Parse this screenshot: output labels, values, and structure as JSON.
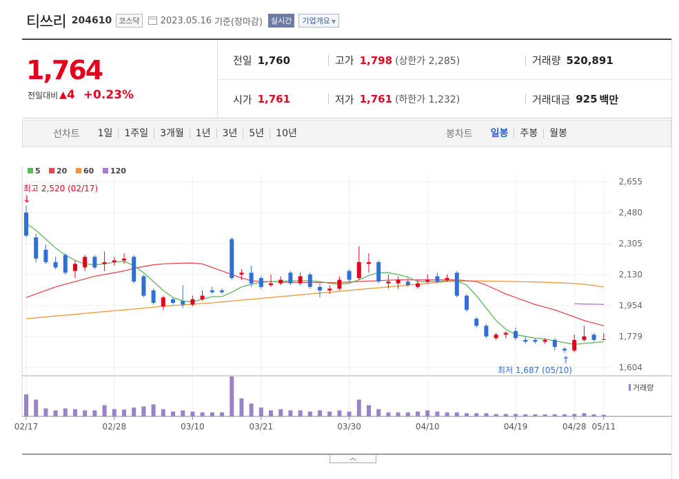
{
  "header": {
    "name": "티쓰리",
    "code": "204610",
    "market": "코스닥",
    "date": "2023.05.16",
    "basis": "기준(장마감)",
    "realtime": "실시간",
    "company_info": "기업개요"
  },
  "summary": {
    "price": "1,764",
    "change_label": "전일대비",
    "change_amount": "4",
    "change_pct": "+0.23%",
    "prev_close_label": "전일",
    "prev_close": "1,760",
    "open_label": "시가",
    "open": "1,761",
    "high_label": "고가",
    "high": "1,798",
    "upper_limit": "(상한가 2,285)",
    "low_label": "저가",
    "low": "1,761",
    "lower_limit": "(하한가 1,232)",
    "volume_label": "거래량",
    "volume": "520,891",
    "value_label": "거래대금",
    "value": "925",
    "value_unit": "백만"
  },
  "tabs": {
    "line_title": "선차트",
    "line_items": [
      "1일",
      "1주일",
      "3개월",
      "1년",
      "3년",
      "5년",
      "10년"
    ],
    "candle_title": "봉차트",
    "candle_items": [
      "일봉",
      "주봉",
      "월봉"
    ],
    "candle_selected": 0
  },
  "colors": {
    "up": "#e5001d",
    "down": "#2f6fd6",
    "ma5": "#5cb85c",
    "ma20": "#e8484f",
    "ma60": "#f0963a",
    "ma120": "#a77ad6",
    "volume": "#9a82c9"
  },
  "chart_data": {
    "type": "candlestick",
    "legend": [
      "5",
      "20",
      "60",
      "120"
    ],
    "y_ticks": [
      "2,655",
      "2,480",
      "2,305",
      "2,130",
      "1,954",
      "1,779",
      "1,604"
    ],
    "ylim": [
      1604,
      2655
    ],
    "x_ticks": [
      "02/17",
      "02/28",
      "03/10",
      "03/21",
      "03/30",
      "04/10",
      "04/19",
      "04/28",
      "05/11"
    ],
    "high_annotation": "최고 2,520 (02/17)",
    "low_annotation": "최저 1,687 (05/10)",
    "volume_label": "거래량",
    "candles": [
      {
        "o": 2480,
        "c": 2350,
        "h": 2520,
        "l": 2340,
        "v": 0.55
      },
      {
        "o": 2340,
        "c": 2220,
        "h": 2360,
        "l": 2200,
        "v": 0.42
      },
      {
        "o": 2270,
        "c": 2200,
        "h": 2300,
        "l": 2190,
        "v": 0.2
      },
      {
        "o": 2200,
        "c": 2170,
        "h": 2230,
        "l": 2160,
        "v": 0.15
      },
      {
        "o": 2240,
        "c": 2140,
        "h": 2250,
        "l": 2130,
        "v": 0.2
      },
      {
        "o": 2150,
        "c": 2190,
        "h": 2210,
        "l": 2110,
        "v": 0.18
      },
      {
        "o": 2170,
        "c": 2230,
        "h": 2240,
        "l": 2150,
        "v": 0.15
      },
      {
        "o": 2230,
        "c": 2170,
        "h": 2240,
        "l": 2160,
        "v": 0.15
      },
      {
        "o": 2190,
        "c": 2200,
        "h": 2260,
        "l": 2150,
        "v": 0.28
      },
      {
        "o": 2200,
        "c": 2210,
        "h": 2230,
        "l": 2180,
        "v": 0.18
      },
      {
        "o": 2210,
        "c": 2220,
        "h": 2250,
        "l": 2190,
        "v": 0.17
      },
      {
        "o": 2230,
        "c": 2090,
        "h": 2240,
        "l": 2080,
        "v": 0.22
      },
      {
        "o": 2120,
        "c": 2010,
        "h": 2130,
        "l": 2000,
        "v": 0.25
      },
      {
        "o": 2040,
        "c": 1970,
        "h": 2050,
        "l": 1960,
        "v": 0.3
      },
      {
        "o": 1950,
        "c": 2000,
        "h": 2010,
        "l": 1930,
        "v": 0.18
      },
      {
        "o": 1990,
        "c": 1970,
        "h": 2000,
        "l": 1960,
        "v": 0.12
      },
      {
        "o": 1980,
        "c": 1960,
        "h": 2070,
        "l": 1940,
        "v": 0.15
      },
      {
        "o": 1960,
        "c": 1990,
        "h": 2010,
        "l": 1950,
        "v": 0.12
      },
      {
        "o": 1990,
        "c": 2010,
        "h": 2040,
        "l": 1980,
        "v": 0.1
      },
      {
        "o": 2040,
        "c": 2030,
        "h": 2060,
        "l": 2020,
        "v": 0.1
      },
      {
        "o": 2040,
        "c": 2030,
        "h": 2050,
        "l": 2020,
        "v": 0.1
      },
      {
        "o": 2330,
        "c": 2110,
        "h": 2340,
        "l": 2100,
        "v": 1.0
      },
      {
        "o": 2130,
        "c": 2140,
        "h": 2160,
        "l": 2100,
        "v": 0.45
      },
      {
        "o": 2140,
        "c": 2080,
        "h": 2180,
        "l": 2060,
        "v": 0.32
      },
      {
        "o": 2110,
        "c": 2060,
        "h": 2120,
        "l": 2050,
        "v": 0.22
      },
      {
        "o": 2070,
        "c": 2080,
        "h": 2130,
        "l": 2060,
        "v": 0.15
      },
      {
        "o": 2080,
        "c": 2100,
        "h": 2120,
        "l": 2070,
        "v": 0.18
      },
      {
        "o": 2140,
        "c": 2080,
        "h": 2150,
        "l": 2070,
        "v": 0.15
      },
      {
        "o": 2080,
        "c": 2120,
        "h": 2140,
        "l": 2070,
        "v": 0.15
      },
      {
        "o": 2130,
        "c": 2060,
        "h": 2140,
        "l": 2050,
        "v": 0.12
      },
      {
        "o": 2060,
        "c": 2040,
        "h": 2080,
        "l": 2000,
        "v": 0.15
      },
      {
        "o": 2040,
        "c": 2050,
        "h": 2070,
        "l": 2020,
        "v": 0.12
      },
      {
        "o": 2050,
        "c": 2100,
        "h": 2120,
        "l": 2040,
        "v": 0.15
      },
      {
        "o": 2150,
        "c": 2100,
        "h": 2160,
        "l": 2090,
        "v": 0.12
      },
      {
        "o": 2110,
        "c": 2200,
        "h": 2290,
        "l": 2100,
        "v": 0.42
      },
      {
        "o": 2190,
        "c": 2200,
        "h": 2250,
        "l": 2140,
        "v": 0.28
      },
      {
        "o": 2200,
        "c": 2090,
        "h": 2210,
        "l": 2080,
        "v": 0.18
      },
      {
        "o": 2080,
        "c": 2090,
        "h": 2130,
        "l": 2050,
        "v": 0.1
      },
      {
        "o": 2080,
        "c": 2100,
        "h": 2120,
        "l": 2050,
        "v": 0.1
      },
      {
        "o": 2090,
        "c": 2070,
        "h": 2110,
        "l": 2060,
        "v": 0.1
      },
      {
        "o": 2060,
        "c": 2080,
        "h": 2100,
        "l": 2050,
        "v": 0.12
      },
      {
        "o": 2090,
        "c": 2100,
        "h": 2130,
        "l": 2080,
        "v": 0.15
      },
      {
        "o": 2120,
        "c": 2090,
        "h": 2140,
        "l": 2080,
        "v": 0.12
      },
      {
        "o": 2100,
        "c": 2110,
        "h": 2130,
        "l": 2090,
        "v": 0.1
      },
      {
        "o": 2140,
        "c": 2010,
        "h": 2150,
        "l": 2000,
        "v": 0.1
      },
      {
        "o": 2010,
        "c": 1930,
        "h": 2020,
        "l": 1920,
        "v": 0.08
      },
      {
        "o": 1880,
        "c": 1840,
        "h": 1890,
        "l": 1830,
        "v": 0.08
      },
      {
        "o": 1840,
        "c": 1780,
        "h": 1850,
        "l": 1770,
        "v": 0.08
      },
      {
        "o": 1770,
        "c": 1790,
        "h": 1800,
        "l": 1760,
        "v": 0.06
      },
      {
        "o": 1790,
        "c": 1800,
        "h": 1810,
        "l": 1770,
        "v": 0.06
      },
      {
        "o": 1810,
        "c": 1770,
        "h": 1830,
        "l": 1760,
        "v": 0.06
      },
      {
        "o": 1760,
        "c": 1750,
        "h": 1780,
        "l": 1740,
        "v": 0.05
      },
      {
        "o": 1760,
        "c": 1750,
        "h": 1770,
        "l": 1740,
        "v": 0.05
      },
      {
        "o": 1750,
        "c": 1760,
        "h": 1770,
        "l": 1740,
        "v": 0.05
      },
      {
        "o": 1760,
        "c": 1720,
        "h": 1770,
        "l": 1700,
        "v": 0.05
      },
      {
        "o": 1710,
        "c": 1700,
        "h": 1720,
        "l": 1687,
        "v": 0.05
      },
      {
        "o": 1700,
        "c": 1760,
        "h": 1790,
        "l": 1690,
        "v": 0.06
      },
      {
        "o": 1760,
        "c": 1780,
        "h": 1840,
        "l": 1750,
        "v": 0.08
      },
      {
        "o": 1790,
        "c": 1760,
        "h": 1800,
        "l": 1750,
        "v": 0.05
      },
      {
        "o": 1761,
        "c": 1764,
        "h": 1798,
        "l": 1761,
        "v": 0.04
      }
    ],
    "ma5": [
      2420,
      2380,
      2330,
      2280,
      2240,
      2210,
      2190,
      2185,
      2190,
      2200,
      2205,
      2180,
      2140,
      2090,
      2040,
      2000,
      1980,
      1975,
      1990,
      2005,
      2005,
      2030,
      2060,
      2075,
      2085,
      2090,
      2090,
      2095,
      2095,
      2095,
      2090,
      2080,
      2075,
      2080,
      2100,
      2125,
      2140,
      2140,
      2130,
      2115,
      2090,
      2090,
      2090,
      2095,
      2095,
      2070,
      2010,
      1940,
      1870,
      1820,
      1790,
      1780,
      1770,
      1765,
      1755,
      1745,
      1735,
      1740,
      1745,
      1750
    ],
    "ma20": [
      2000,
      2020,
      2040,
      2060,
      2075,
      2090,
      2105,
      2120,
      2130,
      2140,
      2150,
      2165,
      2175,
      2185,
      2190,
      2192,
      2194,
      2195,
      2190,
      2170,
      2150,
      2130,
      2110,
      2095,
      2090,
      2090,
      2088,
      2086,
      2085,
      2085,
      2085,
      2084,
      2085,
      2088,
      2090,
      2093,
      2095,
      2098,
      2100,
      2100,
      2100,
      2100,
      2100,
      2100,
      2100,
      2095,
      2090,
      2070,
      2045,
      2020,
      2000,
      1980,
      1960,
      1945,
      1930,
      1910,
      1890,
      1870,
      1855,
      1840
    ],
    "ma60": [
      1880,
      1885,
      1890,
      1895,
      1900,
      1905,
      1910,
      1915,
      1920,
      1925,
      1930,
      1935,
      1940,
      1945,
      1950,
      1955,
      1958,
      1962,
      1966,
      1970,
      1975,
      1980,
      1985,
      1990,
      1995,
      2000,
      2005,
      2010,
      2015,
      2020,
      2025,
      2030,
      2035,
      2040,
      2045,
      2050,
      2055,
      2060,
      2065,
      2070,
      2075,
      2080,
      2085,
      2090,
      2092,
      2094,
      2094,
      2093,
      2092,
      2091,
      2090,
      2089,
      2088,
      2086,
      2084,
      2082,
      2079,
      2075,
      2068,
      2060
    ],
    "ma120": [
      1965,
      1963,
      1962,
      1961
    ]
  }
}
